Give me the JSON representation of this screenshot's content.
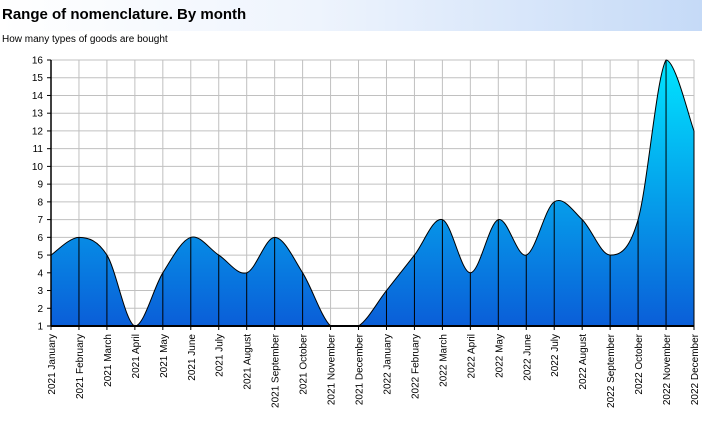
{
  "chart_data": {
    "type": "area",
    "title": "Range of nomenclature. By month",
    "subtitle": "How many types of goods are bought",
    "xlabel": "",
    "ylabel": "",
    "ylim": [
      1,
      16
    ],
    "yticks": [
      1,
      2,
      3,
      4,
      5,
      6,
      7,
      8,
      9,
      10,
      11,
      12,
      13,
      14,
      15,
      16
    ],
    "grid": true,
    "legend": "none",
    "categories": [
      "2021 January",
      "2021 February",
      "2021 March",
      "2021 April",
      "2021 May",
      "2021 June",
      "2021 July",
      "2021 August",
      "2021 September",
      "2021 October",
      "2021 November",
      "2021 December",
      "2022 January",
      "2022 February",
      "2022 March",
      "2022 April",
      "2022 May",
      "2022 June",
      "2022 July",
      "2022 August",
      "2022 September",
      "2022 October",
      "2022 November",
      "2022 December"
    ],
    "values": [
      5,
      6,
      5,
      1,
      4,
      6,
      5,
      4,
      6,
      4,
      1,
      1,
      3,
      5,
      7,
      4,
      7,
      5,
      8,
      7,
      5,
      7,
      16,
      12
    ],
    "colors": {
      "fill_top": "#00e5ff",
      "fill_bottom": "#0a5ed8",
      "outline": "#000000",
      "grid": "#c0c0c0",
      "title_gradient_end": "#c5daf7"
    }
  }
}
